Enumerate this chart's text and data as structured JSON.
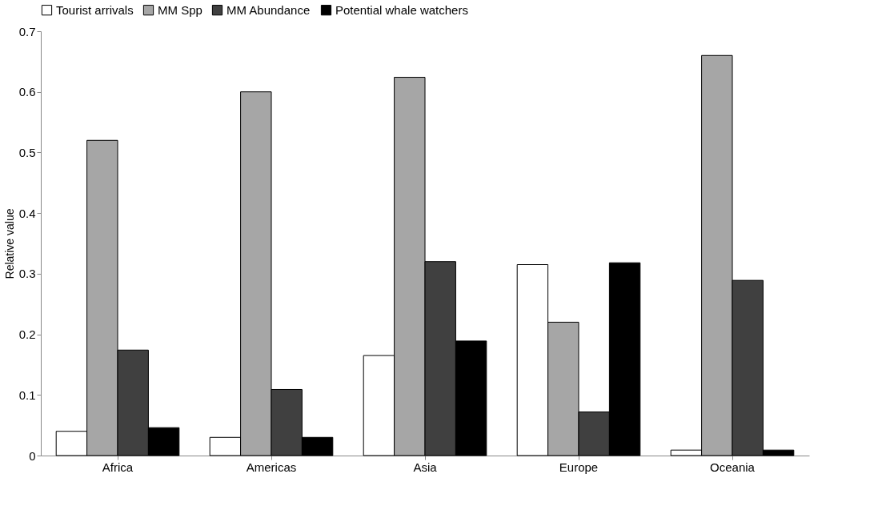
{
  "chart_data": {
    "type": "bar",
    "ylabel": "Relative value",
    "categories": [
      "Africa",
      "Americas",
      "Asia",
      "Europe",
      "Oceania"
    ],
    "series": [
      {
        "name": "Tourist arrivals",
        "color": "#ffffff",
        "values": [
          0.04,
          0.03,
          0.165,
          0.315,
          0.009
        ]
      },
      {
        "name": "MM Spp",
        "color": "#a6a6a6",
        "values": [
          0.52,
          0.6,
          0.624,
          0.22,
          0.66
        ]
      },
      {
        "name": "MM Abundance",
        "color": "#404040",
        "values": [
          0.174,
          0.109,
          0.32,
          0.072,
          0.289
        ]
      },
      {
        "name": "Potential whale watchers",
        "color": "#000000",
        "values": [
          0.046,
          0.03,
          0.189,
          0.318,
          0.009
        ]
      }
    ],
    "ylim": [
      0,
      0.7
    ],
    "yticks": [
      0,
      0.1,
      0.2,
      0.3,
      0.4,
      0.5,
      0.6,
      0.7
    ],
    "grid": false,
    "legend": "top"
  }
}
